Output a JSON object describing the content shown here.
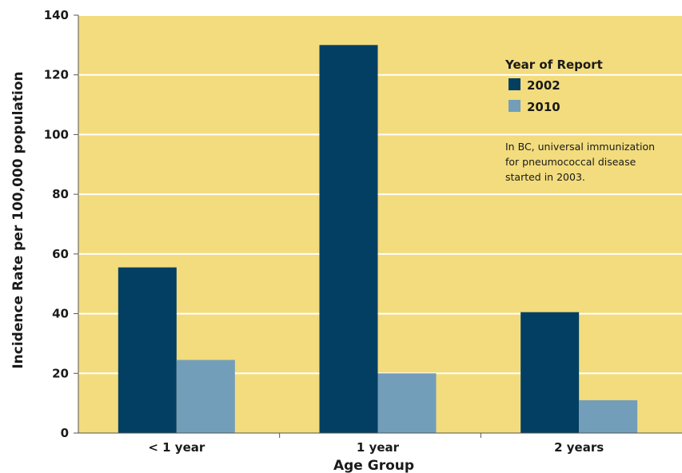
{
  "chart_data": {
    "type": "bar",
    "categories": [
      "< 1 year",
      "1 year",
      "2 years"
    ],
    "series": [
      {
        "name": "2002",
        "color": "#033f63",
        "values": [
          55.5,
          130,
          40.5
        ]
      },
      {
        "name": "2010",
        "color": "#739eba",
        "values": [
          24.5,
          20,
          11
        ]
      }
    ],
    "xlabel": "Age Group",
    "ylabel": "Incidence Rate per 100,000 population",
    "ylim": [
      0,
      140
    ],
    "yticks": [
      0,
      20,
      40,
      60,
      80,
      100,
      120,
      140
    ],
    "grid": true,
    "legend": {
      "title": "Year of Report",
      "placement": "top-right"
    },
    "annotation": [
      "In BC, universal immunization",
      "for pneumococcal disease",
      "started in 2003."
    ],
    "plot_background": "#f2dc7e",
    "grid_color": "#ffffff"
  }
}
